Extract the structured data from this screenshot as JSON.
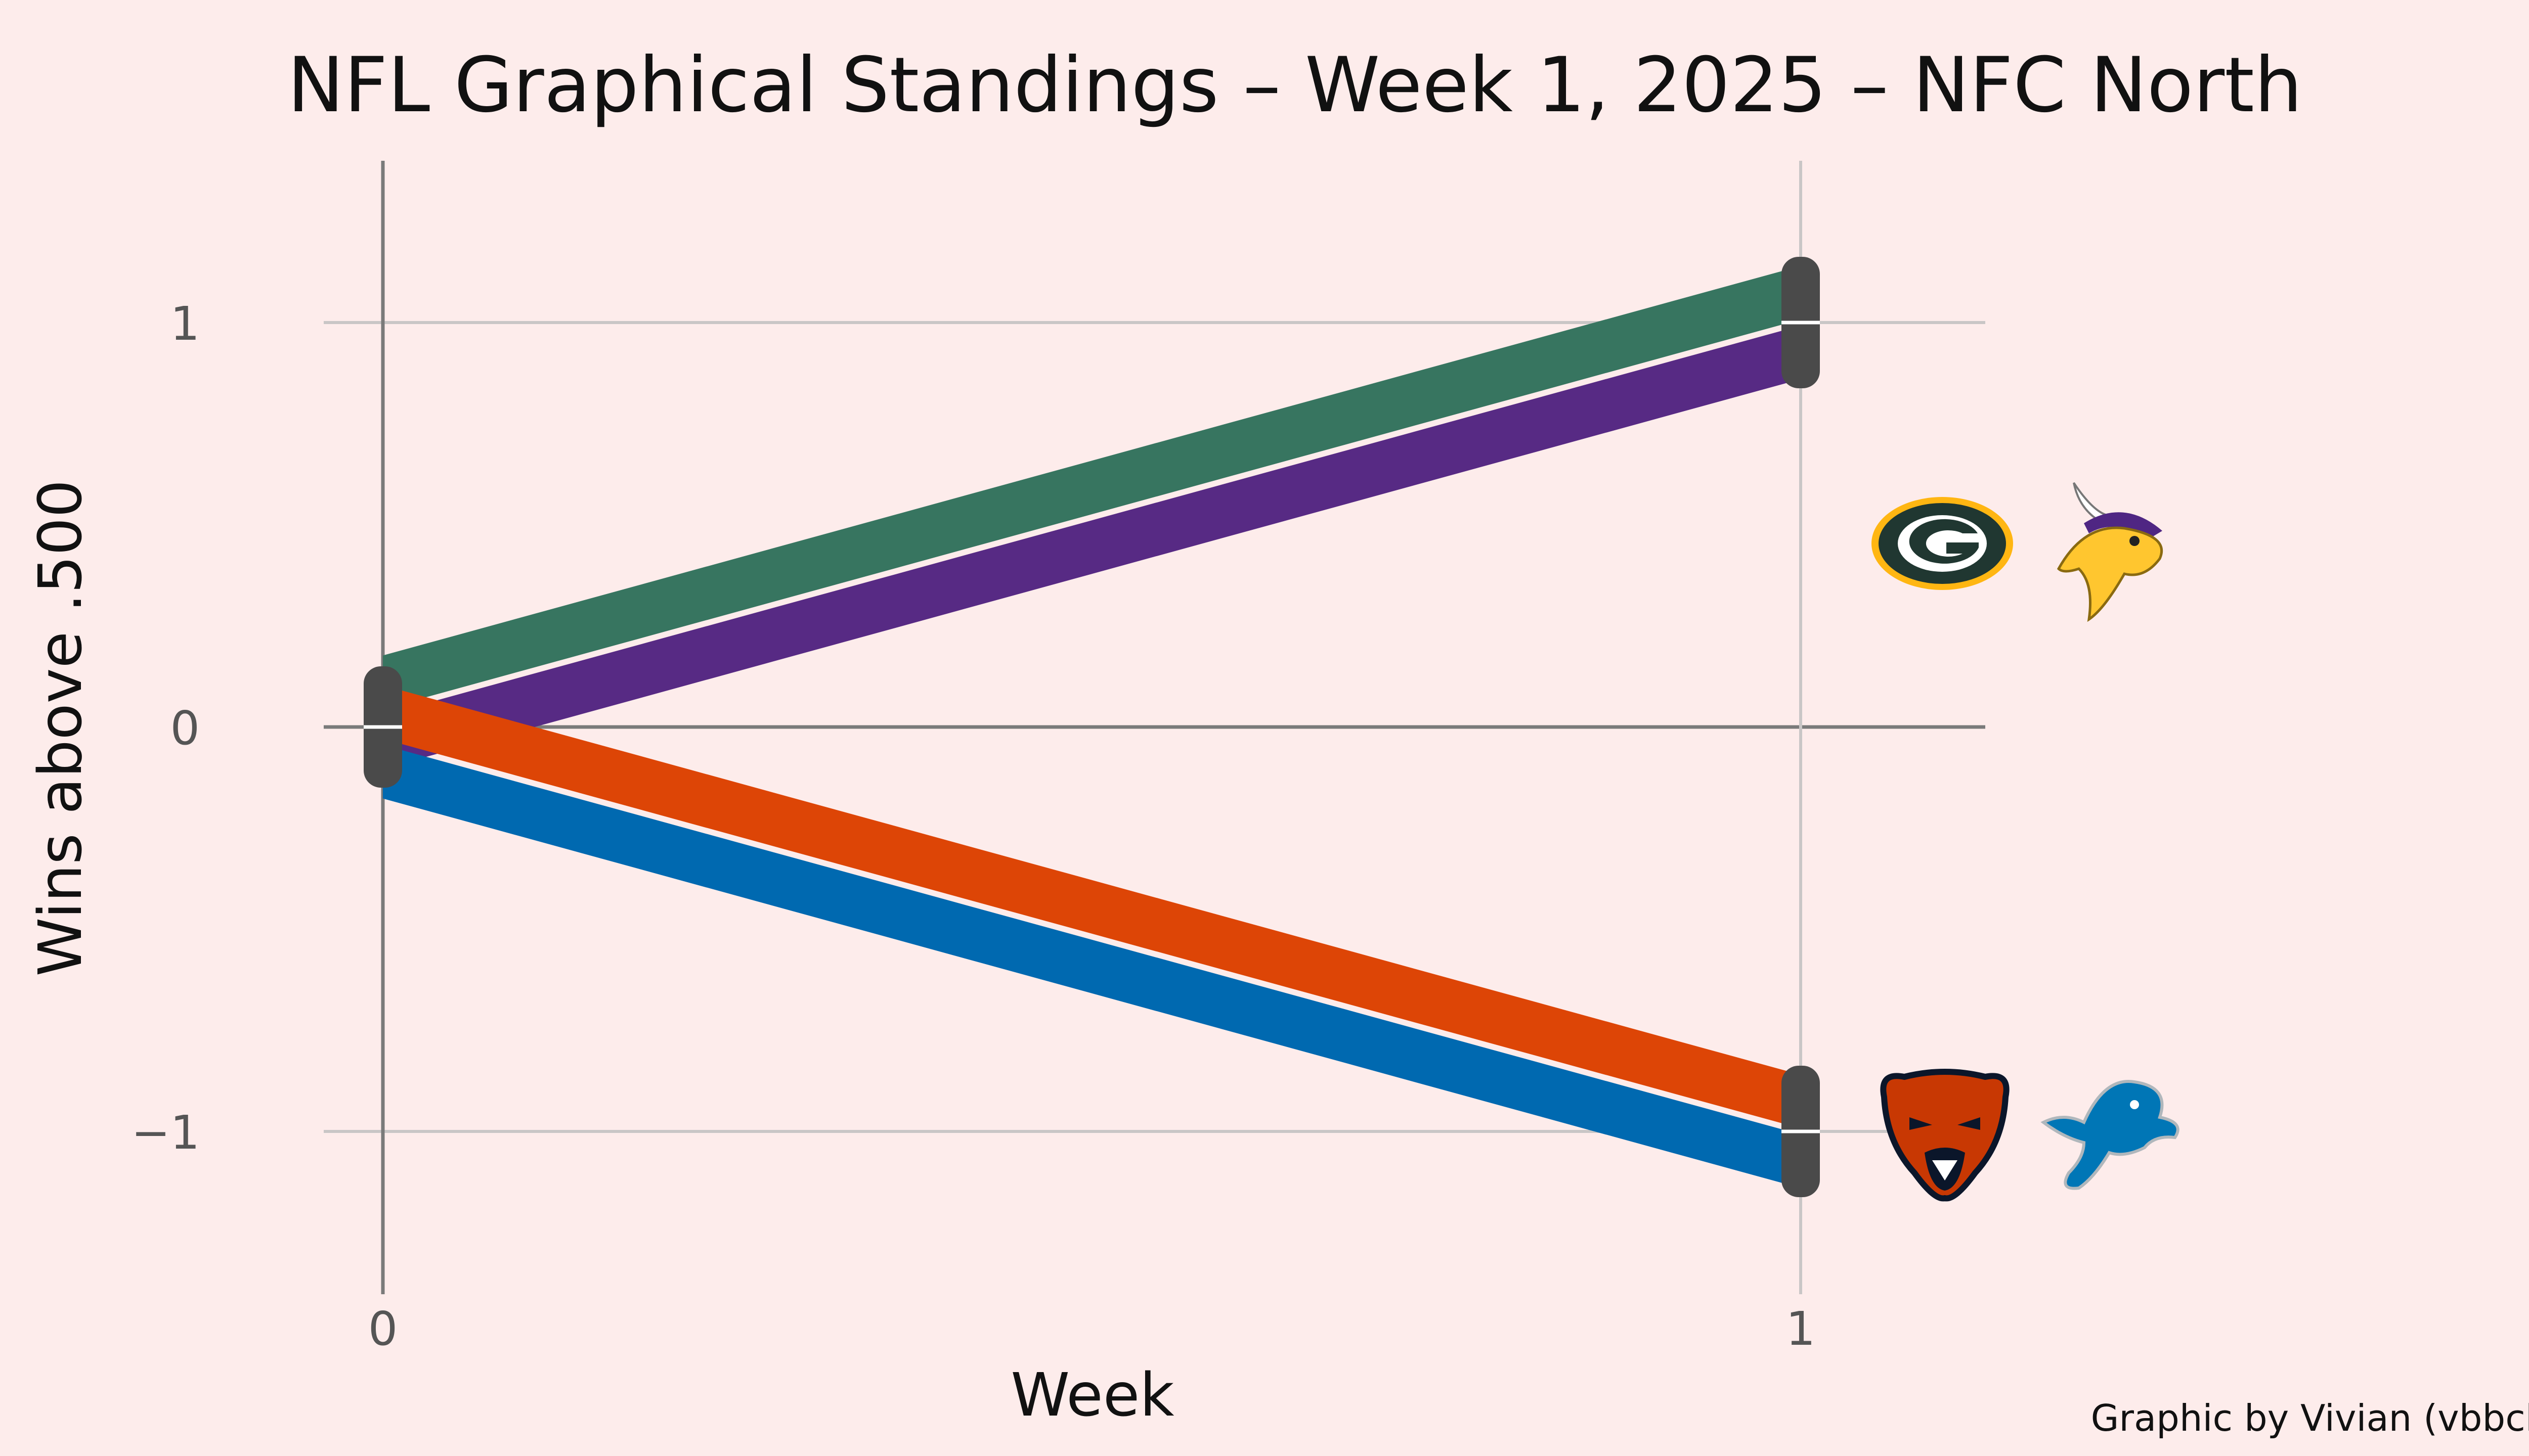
{
  "colors": {
    "background": "#fdeceb",
    "axis": "#7a7a7a",
    "grid": "#c9c6c6",
    "cap": "#4a4a4a",
    "text": "#111111",
    "tick_text": "#555555",
    "logo_colors": {
      "packers": {
        "primary": "#203731",
        "secondary": "#FFB612"
      },
      "vikings": {
        "primary": "#4F2683",
        "secondary": "#FFC62F"
      },
      "bears": {
        "primary": "#0B162A",
        "secondary": "#C83803"
      },
      "lions": {
        "primary": "#0076B6",
        "secondary": "#B0B7BC"
      }
    }
  },
  "chart_data": {
    "type": "line",
    "title": "NFL Graphical Standings – Week 1, 2025 – NFC North",
    "xlabel": "Week",
    "ylabel": "Wins above .500",
    "x": [
      0,
      1
    ],
    "xlim": [
      0,
      1
    ],
    "ylim": [
      -1.3,
      1.3
    ],
    "x_ticks": [
      {
        "value": 0,
        "label": "0"
      },
      {
        "value": 1,
        "label": "1"
      }
    ],
    "y_ticks": [
      {
        "value": 1,
        "label": "1"
      },
      {
        "value": 0,
        "label": "0"
      },
      {
        "value": -1,
        "label": "−1"
      }
    ],
    "grid": true,
    "series": [
      {
        "team": "Packers",
        "color": "#377560",
        "values": [
          0,
          1
        ],
        "logo": "packers-logo"
      },
      {
        "team": "Vikings",
        "color": "#572a84",
        "values": [
          0,
          1
        ],
        "logo": "vikings-logo"
      },
      {
        "team": "Bears",
        "color": "#dd4506",
        "values": [
          0,
          -1
        ],
        "logo": "bears-logo"
      },
      {
        "team": "Lions",
        "color": "#0069b0",
        "values": [
          0,
          -1
        ],
        "logo": "lions-logo"
      }
    ]
  },
  "credit": "Graphic by Vivian (vbbcla)"
}
